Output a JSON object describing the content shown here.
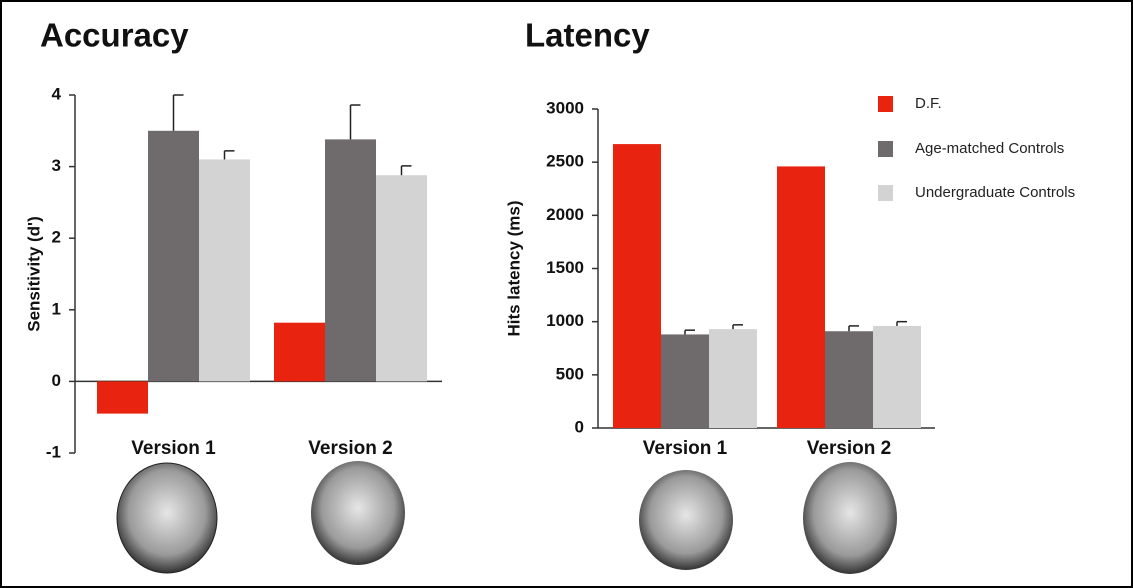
{
  "chart_data": [
    {
      "type": "bar",
      "title": "Accuracy",
      "y_label": "Sensitivity (d')",
      "categories": [
        "Version 1",
        "Version 2"
      ],
      "series": [
        {
          "color": "#e8230f",
          "values": [
            -0.45,
            0.82
          ]
        },
        {
          "color": "#6f6b6c",
          "values": [
            3.5,
            3.38
          ],
          "errors": [
            0.5,
            0.48
          ]
        },
        {
          "color": "#d4d3d3",
          "values": [
            3.1,
            2.88
          ],
          "errors": [
            0.12,
            0.13
          ]
        }
      ],
      "ylim": [
        -1,
        4
      ],
      "yticks": [
        -1,
        0,
        1,
        2,
        3,
        4
      ]
    },
    {
      "type": "bar",
      "title": "Latency",
      "y_label": "Hits latency (ms)",
      "categories": [
        "Version 1",
        "Version 2"
      ],
      "series": [
        {
          "name": "D.F.",
          "color": "#e8230f",
          "values": [
            2670,
            2460
          ]
        },
        {
          "name": "Age-matched Controls",
          "color": "#6f6b6c",
          "values": [
            880,
            910
          ],
          "errors": [
            40,
            50
          ]
        },
        {
          "name": "Undergraduate Controls",
          "color": "#d4d3d3",
          "values": [
            930,
            960
          ],
          "errors": [
            40,
            40
          ]
        }
      ],
      "ylim": [
        0,
        3000
      ],
      "yticks": [
        0,
        500,
        1000,
        1500,
        2000,
        2500,
        3000
      ],
      "legend": "top-right"
    }
  ]
}
